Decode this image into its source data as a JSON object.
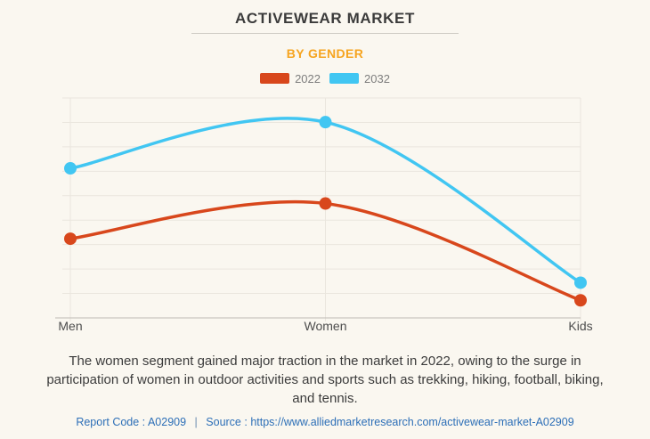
{
  "header": {
    "title": "ACTIVEWEAR MARKET",
    "subtitle": "BY GENDER"
  },
  "chart_data": {
    "type": "line",
    "title": "ACTIVEWEAR MARKET",
    "subtitle": "BY GENDER",
    "categories": [
      "Men",
      "Women",
      "Kids"
    ],
    "series": [
      {
        "name": "2022",
        "color": "#d8471c",
        "values": [
          36,
          52,
          8
        ]
      },
      {
        "name": "2032",
        "color": "#41c6f2",
        "values": [
          68,
          89,
          16
        ]
      }
    ],
    "xlabel": "",
    "ylabel": "",
    "ylim": [
      0,
      100
    ],
    "grid": true,
    "legend_position": "top",
    "line_style": "smooth",
    "markers": "filled-circle"
  },
  "footer": {
    "description": "The women segment gained major traction in the market in 2022, owing to the surge in participation of women in outdoor activities and sports such as trekking, hiking, football, biking, and tennis.",
    "report_code_label": "Report Code :",
    "report_code": "A02909",
    "separator": "|",
    "source_label": "Source :",
    "source_url": "https://www.alliedmarketresearch.com/activewear-market-A02909"
  },
  "colors": {
    "background": "#faf7f0",
    "title": "#3b3b3b",
    "subtitle": "#f6a41f",
    "gridline": "#eae6de",
    "axis_line": "#bdbab4",
    "axis_label": "#4d4d4d",
    "legend_text": "#7d7d7d",
    "link": "#2d6fb7"
  }
}
